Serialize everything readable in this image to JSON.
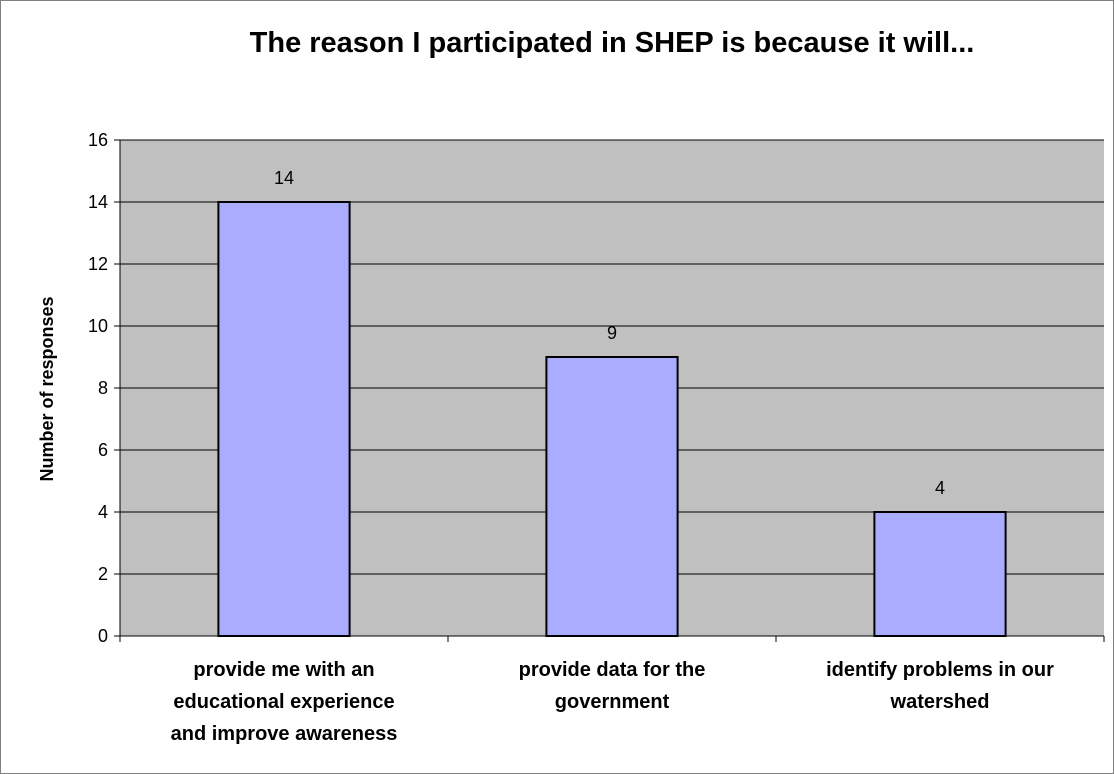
{
  "chart_data": {
    "type": "bar",
    "title": "The reason I participated in SHEP is because it will...",
    "ylabel": "Number of responses",
    "xlabel": "",
    "categories": [
      [
        "provide me with an",
        "educational experience",
        "and improve awareness"
      ],
      [
        "provide data for the",
        "government"
      ],
      [
        "identify problems in our",
        "watershed"
      ]
    ],
    "values": [
      14,
      9,
      4
    ],
    "data_labels": [
      "14",
      "9",
      "4"
    ],
    "ylim": [
      0,
      16
    ],
    "yticks": [
      0,
      2,
      4,
      6,
      8,
      10,
      12,
      14,
      16
    ],
    "grid": true,
    "legend": "none",
    "colors": {
      "plot_background": "#c0c0c0",
      "bar_fill": "#a9acff",
      "bar_stroke": "#000000",
      "gridline": "#000000",
      "frame_border": "#808080"
    }
  }
}
